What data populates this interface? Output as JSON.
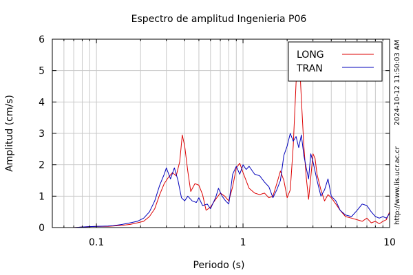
{
  "chart_data": {
    "type": "line",
    "title": "Espectro de amplitud Ingenieria P06",
    "xlabel": "Periodo (s)",
    "ylabel": "Amplitud (cm/s)",
    "x_scale": "log",
    "xlim": [
      0.05,
      10
    ],
    "ylim": [
      0,
      6
    ],
    "x_ticks": [
      {
        "value": 0.1,
        "label": "0.1"
      },
      {
        "value": 1,
        "label": "1"
      },
      {
        "value": 10,
        "label": "10"
      }
    ],
    "y_ticks": [
      0,
      1,
      2,
      3,
      4,
      5,
      6
    ],
    "grid": true,
    "legend": {
      "position": "top-right"
    },
    "side_texts": [
      "2024-10-12 11:50:03 AM",
      "http://www.lis.ucr.ac.cr"
    ],
    "series": [
      {
        "name": "LONG",
        "color": "#dd0000",
        "points": [
          [
            0.05,
            0.0
          ],
          [
            0.07,
            0.0
          ],
          [
            0.08,
            0.02
          ],
          [
            0.09,
            0.03
          ],
          [
            0.1,
            0.04
          ],
          [
            0.12,
            0.04
          ],
          [
            0.13,
            0.05
          ],
          [
            0.15,
            0.07
          ],
          [
            0.17,
            0.1
          ],
          [
            0.19,
            0.15
          ],
          [
            0.21,
            0.2
          ],
          [
            0.23,
            0.35
          ],
          [
            0.25,
            0.6
          ],
          [
            0.27,
            1.05
          ],
          [
            0.29,
            1.4
          ],
          [
            0.31,
            1.6
          ],
          [
            0.33,
            1.75
          ],
          [
            0.35,
            1.65
          ],
          [
            0.37,
            2.1
          ],
          [
            0.385,
            2.95
          ],
          [
            0.4,
            2.6
          ],
          [
            0.42,
            1.8
          ],
          [
            0.44,
            1.15
          ],
          [
            0.47,
            1.4
          ],
          [
            0.5,
            1.35
          ],
          [
            0.53,
            1.05
          ],
          [
            0.56,
            0.55
          ],
          [
            0.6,
            0.65
          ],
          [
            0.65,
            0.9
          ],
          [
            0.7,
            1.1
          ],
          [
            0.75,
            1.0
          ],
          [
            0.8,
            0.85
          ],
          [
            0.85,
            1.3
          ],
          [
            0.9,
            1.9
          ],
          [
            0.95,
            2.05
          ],
          [
            1.0,
            1.75
          ],
          [
            1.1,
            1.25
          ],
          [
            1.2,
            1.1
          ],
          [
            1.3,
            1.05
          ],
          [
            1.4,
            1.1
          ],
          [
            1.5,
            0.95
          ],
          [
            1.6,
            1.0
          ],
          [
            1.7,
            1.4
          ],
          [
            1.8,
            1.8
          ],
          [
            1.9,
            1.5
          ],
          [
            2.0,
            0.95
          ],
          [
            2.1,
            1.2
          ],
          [
            2.2,
            2.6
          ],
          [
            2.3,
            4.6
          ],
          [
            2.4,
            5.8
          ],
          [
            2.5,
            4.1
          ],
          [
            2.6,
            2.6
          ],
          [
            2.7,
            1.6
          ],
          [
            2.8,
            0.9
          ],
          [
            2.9,
            1.6
          ],
          [
            3.0,
            2.35
          ],
          [
            3.1,
            2.2
          ],
          [
            3.2,
            1.7
          ],
          [
            3.4,
            1.2
          ],
          [
            3.6,
            0.85
          ],
          [
            3.8,
            1.05
          ],
          [
            4.0,
            0.95
          ],
          [
            4.3,
            0.75
          ],
          [
            4.6,
            0.55
          ],
          [
            5.0,
            0.35
          ],
          [
            5.5,
            0.3
          ],
          [
            6.0,
            0.25
          ],
          [
            6.5,
            0.2
          ],
          [
            7.0,
            0.3
          ],
          [
            7.5,
            0.15
          ],
          [
            8.0,
            0.2
          ],
          [
            8.5,
            0.12
          ],
          [
            9.0,
            0.2
          ],
          [
            9.5,
            0.25
          ],
          [
            10.0,
            0.5
          ]
        ]
      },
      {
        "name": "TRAN",
        "color": "#0000bb",
        "points": [
          [
            0.05,
            0.0
          ],
          [
            0.07,
            0.0
          ],
          [
            0.08,
            0.02
          ],
          [
            0.09,
            0.03
          ],
          [
            0.1,
            0.04
          ],
          [
            0.12,
            0.05
          ],
          [
            0.13,
            0.06
          ],
          [
            0.15,
            0.1
          ],
          [
            0.17,
            0.15
          ],
          [
            0.19,
            0.2
          ],
          [
            0.21,
            0.3
          ],
          [
            0.23,
            0.5
          ],
          [
            0.25,
            0.85
          ],
          [
            0.27,
            1.35
          ],
          [
            0.29,
            1.7
          ],
          [
            0.3,
            1.9
          ],
          [
            0.32,
            1.55
          ],
          [
            0.34,
            1.9
          ],
          [
            0.36,
            1.5
          ],
          [
            0.38,
            0.95
          ],
          [
            0.4,
            0.85
          ],
          [
            0.42,
            1.0
          ],
          [
            0.45,
            0.85
          ],
          [
            0.48,
            0.8
          ],
          [
            0.5,
            0.95
          ],
          [
            0.53,
            0.7
          ],
          [
            0.57,
            0.75
          ],
          [
            0.6,
            0.6
          ],
          [
            0.65,
            0.95
          ],
          [
            0.68,
            1.25
          ],
          [
            0.72,
            1.0
          ],
          [
            0.76,
            0.85
          ],
          [
            0.8,
            0.75
          ],
          [
            0.85,
            1.7
          ],
          [
            0.9,
            1.95
          ],
          [
            0.95,
            1.7
          ],
          [
            1.0,
            2.0
          ],
          [
            1.05,
            1.85
          ],
          [
            1.1,
            1.95
          ],
          [
            1.2,
            1.7
          ],
          [
            1.3,
            1.65
          ],
          [
            1.4,
            1.45
          ],
          [
            1.5,
            1.3
          ],
          [
            1.6,
            0.95
          ],
          [
            1.7,
            1.2
          ],
          [
            1.8,
            1.5
          ],
          [
            1.9,
            2.3
          ],
          [
            2.0,
            2.6
          ],
          [
            2.1,
            3.0
          ],
          [
            2.2,
            2.75
          ],
          [
            2.3,
            2.9
          ],
          [
            2.4,
            2.55
          ],
          [
            2.5,
            2.95
          ],
          [
            2.6,
            2.3
          ],
          [
            2.7,
            1.9
          ],
          [
            2.8,
            1.55
          ],
          [
            2.9,
            2.35
          ],
          [
            3.0,
            2.1
          ],
          [
            3.2,
            1.5
          ],
          [
            3.4,
            1.0
          ],
          [
            3.6,
            1.2
          ],
          [
            3.8,
            1.55
          ],
          [
            4.0,
            1.0
          ],
          [
            4.3,
            0.85
          ],
          [
            4.6,
            0.55
          ],
          [
            5.0,
            0.4
          ],
          [
            5.5,
            0.35
          ],
          [
            6.0,
            0.55
          ],
          [
            6.5,
            0.75
          ],
          [
            7.0,
            0.7
          ],
          [
            7.5,
            0.5
          ],
          [
            8.0,
            0.35
          ],
          [
            8.5,
            0.3
          ],
          [
            9.0,
            0.35
          ],
          [
            9.5,
            0.3
          ],
          [
            10.0,
            0.45
          ]
        ]
      }
    ]
  }
}
